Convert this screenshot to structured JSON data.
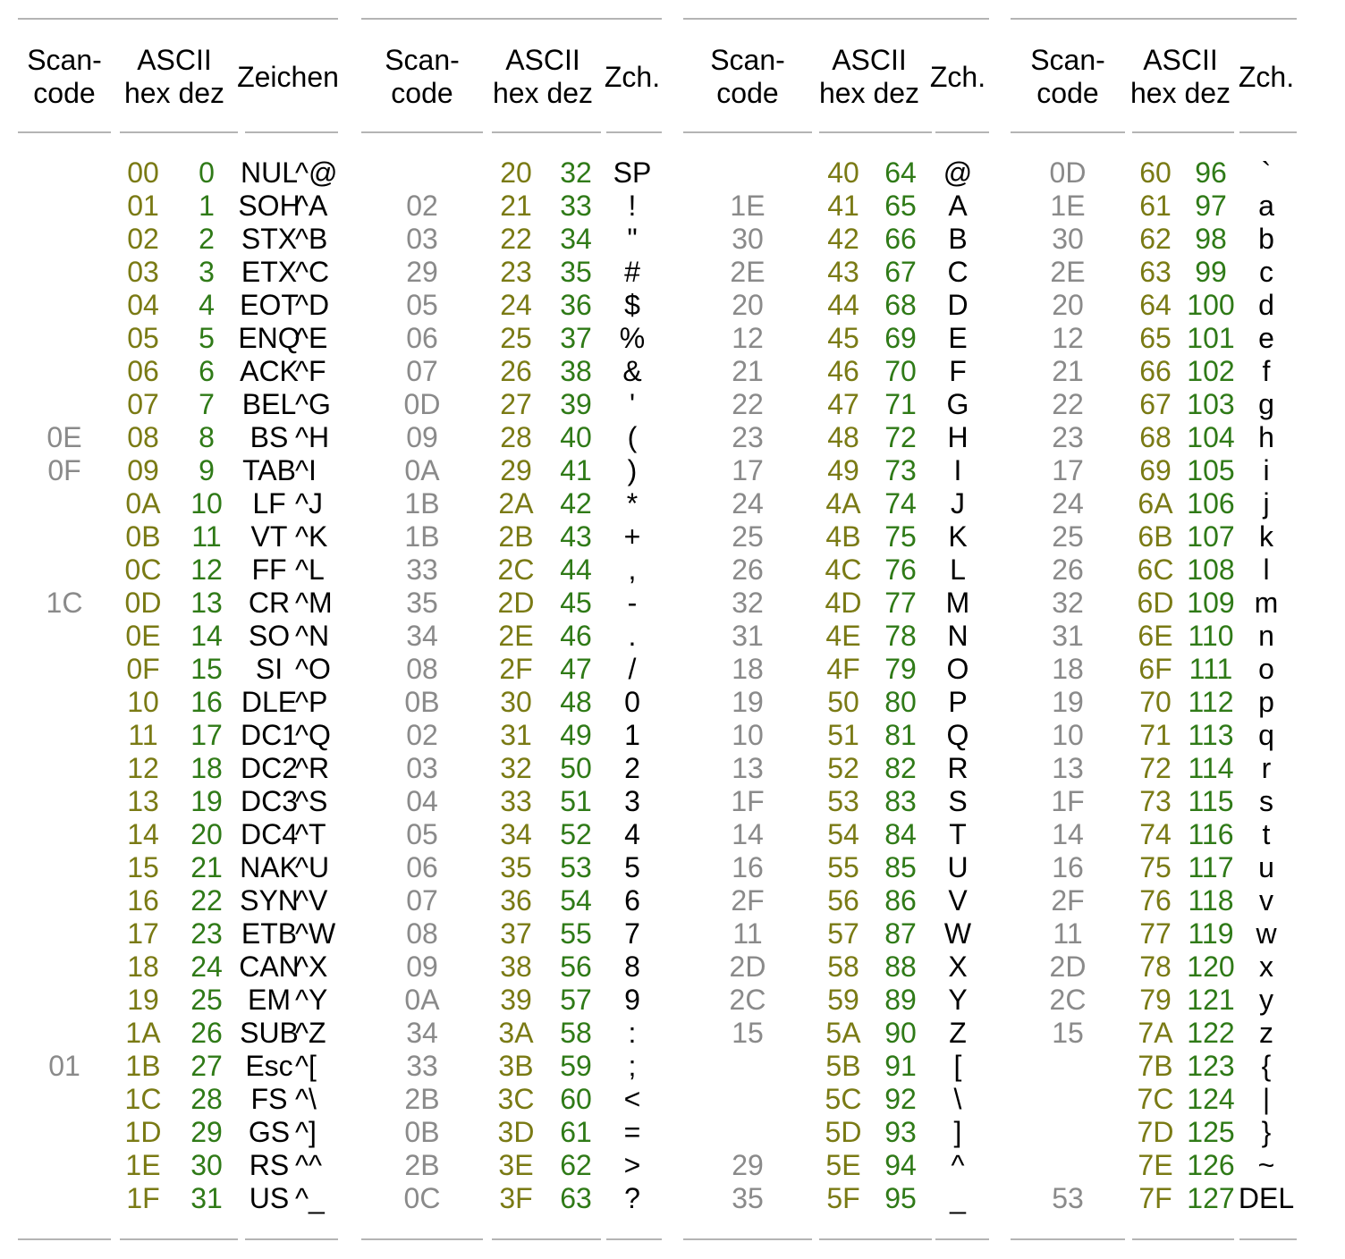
{
  "columns": [
    {
      "header": {
        "scan": [
          "Scan-",
          "code"
        ],
        "ascii": [
          "ASCII",
          "hex dez"
        ],
        "char": "Zeichen"
      },
      "rows": [
        {
          "scan": "",
          "hex": "00",
          "dez": "0",
          "char": "NUL",
          "ctrl": "^@"
        },
        {
          "scan": "",
          "hex": "01",
          "dez": "1",
          "char": "SOH",
          "ctrl": "^A"
        },
        {
          "scan": "",
          "hex": "02",
          "dez": "2",
          "char": "STX",
          "ctrl": "^B"
        },
        {
          "scan": "",
          "hex": "03",
          "dez": "3",
          "char": "ETX",
          "ctrl": "^C"
        },
        {
          "scan": "",
          "hex": "04",
          "dez": "4",
          "char": "EOT",
          "ctrl": "^D"
        },
        {
          "scan": "",
          "hex": "05",
          "dez": "5",
          "char": "ENQ",
          "ctrl": "^E"
        },
        {
          "scan": "",
          "hex": "06",
          "dez": "6",
          "char": "ACK",
          "ctrl": "^F"
        },
        {
          "scan": "",
          "hex": "07",
          "dez": "7",
          "char": "BEL",
          "ctrl": "^G"
        },
        {
          "scan": "0E",
          "hex": "08",
          "dez": "8",
          "char": "BS",
          "ctrl": "^H"
        },
        {
          "scan": "0F",
          "hex": "09",
          "dez": "9",
          "char": "TAB",
          "ctrl": "^I"
        },
        {
          "scan": "",
          "hex": "0A",
          "dez": "10",
          "char": "LF",
          "ctrl": "^J"
        },
        {
          "scan": "",
          "hex": "0B",
          "dez": "11",
          "char": "VT",
          "ctrl": "^K"
        },
        {
          "scan": "",
          "hex": "0C",
          "dez": "12",
          "char": "FF",
          "ctrl": "^L"
        },
        {
          "scan": "1C",
          "hex": "0D",
          "dez": "13",
          "char": "CR",
          "ctrl": "^M"
        },
        {
          "scan": "",
          "hex": "0E",
          "dez": "14",
          "char": "SO",
          "ctrl": "^N"
        },
        {
          "scan": "",
          "hex": "0F",
          "dez": "15",
          "char": "SI",
          "ctrl": "^O"
        },
        {
          "scan": "",
          "hex": "10",
          "dez": "16",
          "char": "DLE",
          "ctrl": "^P"
        },
        {
          "scan": "",
          "hex": "11",
          "dez": "17",
          "char": "DC1",
          "ctrl": "^Q"
        },
        {
          "scan": "",
          "hex": "12",
          "dez": "18",
          "char": "DC2",
          "ctrl": "^R"
        },
        {
          "scan": "",
          "hex": "13",
          "dez": "19",
          "char": "DC3",
          "ctrl": "^S"
        },
        {
          "scan": "",
          "hex": "14",
          "dez": "20",
          "char": "DC4",
          "ctrl": "^T"
        },
        {
          "scan": "",
          "hex": "15",
          "dez": "21",
          "char": "NAK",
          "ctrl": "^U"
        },
        {
          "scan": "",
          "hex": "16",
          "dez": "22",
          "char": "SYN",
          "ctrl": "^V"
        },
        {
          "scan": "",
          "hex": "17",
          "dez": "23",
          "char": "ETB",
          "ctrl": "^W"
        },
        {
          "scan": "",
          "hex": "18",
          "dez": "24",
          "char": "CAN",
          "ctrl": "^X"
        },
        {
          "scan": "",
          "hex": "19",
          "dez": "25",
          "char": "EM",
          "ctrl": "^Y"
        },
        {
          "scan": "",
          "hex": "1A",
          "dez": "26",
          "char": "SUB",
          "ctrl": "^Z"
        },
        {
          "scan": "01",
          "hex": "1B",
          "dez": "27",
          "char": "Esc",
          "ctrl": "^["
        },
        {
          "scan": "",
          "hex": "1C",
          "dez": "28",
          "char": "FS",
          "ctrl": "^\\"
        },
        {
          "scan": "",
          "hex": "1D",
          "dez": "29",
          "char": "GS",
          "ctrl": "^]"
        },
        {
          "scan": "",
          "hex": "1E",
          "dez": "30",
          "char": "RS",
          "ctrl": "^^"
        },
        {
          "scan": "",
          "hex": "1F",
          "dez": "31",
          "char": "US",
          "ctrl": "^_"
        }
      ]
    },
    {
      "header": {
        "scan": [
          "Scan-",
          "code"
        ],
        "ascii": [
          "ASCII",
          "hex dez"
        ],
        "char": "Zch."
      },
      "rows": [
        {
          "scan": "",
          "hex": "20",
          "dez": "32",
          "char": "SP"
        },
        {
          "scan": "02",
          "hex": "21",
          "dez": "33",
          "char": "!"
        },
        {
          "scan": "03",
          "hex": "22",
          "dez": "34",
          "char": "\""
        },
        {
          "scan": "29",
          "hex": "23",
          "dez": "35",
          "char": "#"
        },
        {
          "scan": "05",
          "hex": "24",
          "dez": "36",
          "char": "$"
        },
        {
          "scan": "06",
          "hex": "25",
          "dez": "37",
          "char": "%"
        },
        {
          "scan": "07",
          "hex": "26",
          "dez": "38",
          "char": "&"
        },
        {
          "scan": "0D",
          "hex": "27",
          "dez": "39",
          "char": "'"
        },
        {
          "scan": "09",
          "hex": "28",
          "dez": "40",
          "char": "("
        },
        {
          "scan": "0A",
          "hex": "29",
          "dez": "41",
          "char": ")"
        },
        {
          "scan": "1B",
          "hex": "2A",
          "dez": "42",
          "char": "*"
        },
        {
          "scan": "1B",
          "hex": "2B",
          "dez": "43",
          "char": "+"
        },
        {
          "scan": "33",
          "hex": "2C",
          "dez": "44",
          "char": ","
        },
        {
          "scan": "35",
          "hex": "2D",
          "dez": "45",
          "char": "-"
        },
        {
          "scan": "34",
          "hex": "2E",
          "dez": "46",
          "char": "."
        },
        {
          "scan": "08",
          "hex": "2F",
          "dez": "47",
          "char": "/"
        },
        {
          "scan": "0B",
          "hex": "30",
          "dez": "48",
          "char": "0"
        },
        {
          "scan": "02",
          "hex": "31",
          "dez": "49",
          "char": "1"
        },
        {
          "scan": "03",
          "hex": "32",
          "dez": "50",
          "char": "2"
        },
        {
          "scan": "04",
          "hex": "33",
          "dez": "51",
          "char": "3"
        },
        {
          "scan": "05",
          "hex": "34",
          "dez": "52",
          "char": "4"
        },
        {
          "scan": "06",
          "hex": "35",
          "dez": "53",
          "char": "5"
        },
        {
          "scan": "07",
          "hex": "36",
          "dez": "54",
          "char": "6"
        },
        {
          "scan": "08",
          "hex": "37",
          "dez": "55",
          "char": "7"
        },
        {
          "scan": "09",
          "hex": "38",
          "dez": "56",
          "char": "8"
        },
        {
          "scan": "0A",
          "hex": "39",
          "dez": "57",
          "char": "9"
        },
        {
          "scan": "34",
          "hex": "3A",
          "dez": "58",
          "char": ":"
        },
        {
          "scan": "33",
          "hex": "3B",
          "dez": "59",
          "char": ";"
        },
        {
          "scan": "2B",
          "hex": "3C",
          "dez": "60",
          "char": "<"
        },
        {
          "scan": "0B",
          "hex": "3D",
          "dez": "61",
          "char": "="
        },
        {
          "scan": "2B",
          "hex": "3E",
          "dez": "62",
          "char": ">"
        },
        {
          "scan": "0C",
          "hex": "3F",
          "dez": "63",
          "char": "?"
        }
      ]
    },
    {
      "header": {
        "scan": [
          "Scan-",
          "code"
        ],
        "ascii": [
          "ASCII",
          "hex dez"
        ],
        "char": "Zch."
      },
      "rows": [
        {
          "scan": "",
          "hex": "40",
          "dez": "64",
          "char": "@"
        },
        {
          "scan": "1E",
          "hex": "41",
          "dez": "65",
          "char": "A"
        },
        {
          "scan": "30",
          "hex": "42",
          "dez": "66",
          "char": "B"
        },
        {
          "scan": "2E",
          "hex": "43",
          "dez": "67",
          "char": "C"
        },
        {
          "scan": "20",
          "hex": "44",
          "dez": "68",
          "char": "D"
        },
        {
          "scan": "12",
          "hex": "45",
          "dez": "69",
          "char": "E"
        },
        {
          "scan": "21",
          "hex": "46",
          "dez": "70",
          "char": "F"
        },
        {
          "scan": "22",
          "hex": "47",
          "dez": "71",
          "char": "G"
        },
        {
          "scan": "23",
          "hex": "48",
          "dez": "72",
          "char": "H"
        },
        {
          "scan": "17",
          "hex": "49",
          "dez": "73",
          "char": "I"
        },
        {
          "scan": "24",
          "hex": "4A",
          "dez": "74",
          "char": "J"
        },
        {
          "scan": "25",
          "hex": "4B",
          "dez": "75",
          "char": "K"
        },
        {
          "scan": "26",
          "hex": "4C",
          "dez": "76",
          "char": "L"
        },
        {
          "scan": "32",
          "hex": "4D",
          "dez": "77",
          "char": "M"
        },
        {
          "scan": "31",
          "hex": "4E",
          "dez": "78",
          "char": "N"
        },
        {
          "scan": "18",
          "hex": "4F",
          "dez": "79",
          "char": "O"
        },
        {
          "scan": "19",
          "hex": "50",
          "dez": "80",
          "char": "P"
        },
        {
          "scan": "10",
          "hex": "51",
          "dez": "81",
          "char": "Q"
        },
        {
          "scan": "13",
          "hex": "52",
          "dez": "82",
          "char": "R"
        },
        {
          "scan": "1F",
          "hex": "53",
          "dez": "83",
          "char": "S"
        },
        {
          "scan": "14",
          "hex": "54",
          "dez": "84",
          "char": "T"
        },
        {
          "scan": "16",
          "hex": "55",
          "dez": "85",
          "char": "U"
        },
        {
          "scan": "2F",
          "hex": "56",
          "dez": "86",
          "char": "V"
        },
        {
          "scan": "11",
          "hex": "57",
          "dez": "87",
          "char": "W"
        },
        {
          "scan": "2D",
          "hex": "58",
          "dez": "88",
          "char": "X"
        },
        {
          "scan": "2C",
          "hex": "59",
          "dez": "89",
          "char": "Y"
        },
        {
          "scan": "15",
          "hex": "5A",
          "dez": "90",
          "char": "Z"
        },
        {
          "scan": "",
          "hex": "5B",
          "dez": "91",
          "char": "["
        },
        {
          "scan": "",
          "hex": "5C",
          "dez": "92",
          "char": "\\"
        },
        {
          "scan": "",
          "hex": "5D",
          "dez": "93",
          "char": "]"
        },
        {
          "scan": "29",
          "hex": "5E",
          "dez": "94",
          "char": "^"
        },
        {
          "scan": "35",
          "hex": "5F",
          "dez": "95",
          "char": "_"
        }
      ]
    },
    {
      "header": {
        "scan": [
          "Scan-",
          "code"
        ],
        "ascii": [
          "ASCII",
          "hex dez"
        ],
        "char": "Zch."
      },
      "rows": [
        {
          "scan": "0D",
          "hex": "60",
          "dez": "96",
          "char": "`"
        },
        {
          "scan": "1E",
          "hex": "61",
          "dez": "97",
          "char": "a"
        },
        {
          "scan": "30",
          "hex": "62",
          "dez": "98",
          "char": "b"
        },
        {
          "scan": "2E",
          "hex": "63",
          "dez": "99",
          "char": "c"
        },
        {
          "scan": "20",
          "hex": "64",
          "dez": "100",
          "char": "d"
        },
        {
          "scan": "12",
          "hex": "65",
          "dez": "101",
          "char": "e"
        },
        {
          "scan": "21",
          "hex": "66",
          "dez": "102",
          "char": "f"
        },
        {
          "scan": "22",
          "hex": "67",
          "dez": "103",
          "char": "g"
        },
        {
          "scan": "23",
          "hex": "68",
          "dez": "104",
          "char": "h"
        },
        {
          "scan": "17",
          "hex": "69",
          "dez": "105",
          "char": "i"
        },
        {
          "scan": "24",
          "hex": "6A",
          "dez": "106",
          "char": "j"
        },
        {
          "scan": "25",
          "hex": "6B",
          "dez": "107",
          "char": "k"
        },
        {
          "scan": "26",
          "hex": "6C",
          "dez": "108",
          "char": "l"
        },
        {
          "scan": "32",
          "hex": "6D",
          "dez": "109",
          "char": "m"
        },
        {
          "scan": "31",
          "hex": "6E",
          "dez": "110",
          "char": "n"
        },
        {
          "scan": "18",
          "hex": "6F",
          "dez": "111",
          "char": "o"
        },
        {
          "scan": "19",
          "hex": "70",
          "dez": "112",
          "char": "p"
        },
        {
          "scan": "10",
          "hex": "71",
          "dez": "113",
          "char": "q"
        },
        {
          "scan": "13",
          "hex": "72",
          "dez": "114",
          "char": "r"
        },
        {
          "scan": "1F",
          "hex": "73",
          "dez": "115",
          "char": "s"
        },
        {
          "scan": "14",
          "hex": "74",
          "dez": "116",
          "char": "t"
        },
        {
          "scan": "16",
          "hex": "75",
          "dez": "117",
          "char": "u"
        },
        {
          "scan": "2F",
          "hex": "76",
          "dez": "118",
          "char": "v"
        },
        {
          "scan": "11",
          "hex": "77",
          "dez": "119",
          "char": "w"
        },
        {
          "scan": "2D",
          "hex": "78",
          "dez": "120",
          "char": "x"
        },
        {
          "scan": "2C",
          "hex": "79",
          "dez": "121",
          "char": "y"
        },
        {
          "scan": "15",
          "hex": "7A",
          "dez": "122",
          "char": "z"
        },
        {
          "scan": "",
          "hex": "7B",
          "dez": "123",
          "char": "{"
        },
        {
          "scan": "",
          "hex": "7C",
          "dez": "124",
          "char": "|"
        },
        {
          "scan": "",
          "hex": "7D",
          "dez": "125",
          "char": "}"
        },
        {
          "scan": "",
          "hex": "7E",
          "dez": "126",
          "char": "~"
        },
        {
          "scan": "53",
          "hex": "7F",
          "dez": "127",
          "char": "DEL"
        }
      ]
    }
  ],
  "colors": {
    "scancode": "#8a8a8a",
    "hex": "#7a7a14",
    "dez": "#2f7a17",
    "char": "#000000",
    "rule": "#b4b4b4"
  }
}
